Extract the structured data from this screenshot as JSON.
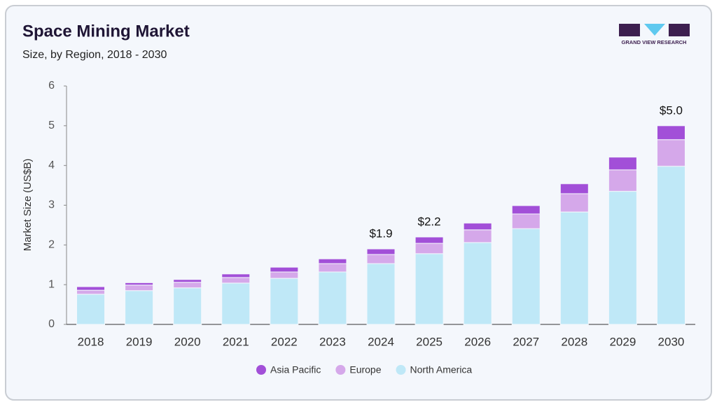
{
  "logo_text": "GRAND VIEW RESEARCH",
  "chart_data": {
    "type": "stacked-bar",
    "title": "Space Mining Market",
    "subtitle": "Size, by Region, 2018 - 2030",
    "y_label": "Market Size (US$B)",
    "categories": [
      "2018",
      "2019",
      "2020",
      "2021",
      "2022",
      "2023",
      "2024",
      "2025",
      "2026",
      "2027",
      "2028",
      "2029",
      "2030"
    ],
    "series": [
      {
        "name": "North America",
        "color": "#bfe8f7",
        "values": [
          0.76,
          0.85,
          0.92,
          1.04,
          1.16,
          1.32,
          1.53,
          1.78,
          2.06,
          2.41,
          2.83,
          3.35,
          3.98
        ]
      },
      {
        "name": "Europe",
        "color": "#d5a8ea",
        "values": [
          0.1,
          0.14,
          0.14,
          0.14,
          0.16,
          0.21,
          0.23,
          0.26,
          0.32,
          0.37,
          0.46,
          0.54,
          0.67
        ]
      },
      {
        "name": "Asia Pacific",
        "color": "#a24fd8",
        "values": [
          0.09,
          0.06,
          0.07,
          0.09,
          0.12,
          0.12,
          0.14,
          0.16,
          0.17,
          0.21,
          0.25,
          0.32,
          0.35
        ]
      }
    ],
    "annotations": [
      {
        "x": "2024",
        "value": 1.9,
        "label": "$1.9"
      },
      {
        "x": "2025",
        "value": 2.2,
        "label": "$2.2"
      },
      {
        "x": "2030",
        "value": 5.0,
        "label": "$5.0"
      }
    ],
    "ylim": [
      0,
      6
    ],
    "yticks": [
      0,
      1,
      2,
      3,
      4,
      5,
      6
    ],
    "grid": false,
    "legend": "bottom"
  }
}
